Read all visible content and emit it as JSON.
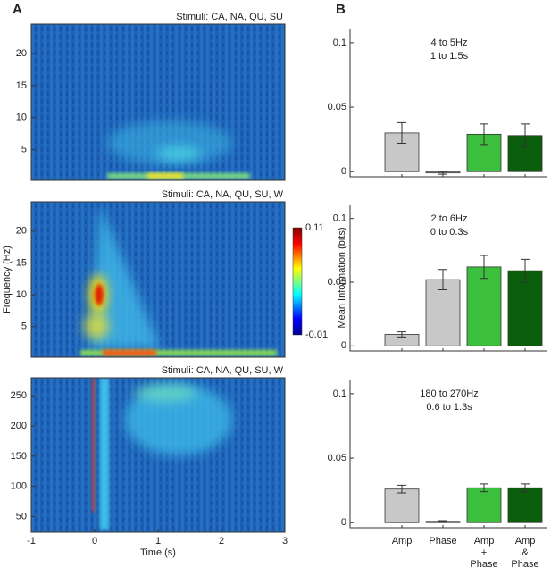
{
  "panel_labels": [
    "A",
    "B"
  ],
  "chart_data": [
    {
      "type": "heatmap",
      "title": "Stimuli: CA, NA, QU, SU",
      "xlim": [
        -1,
        3
      ],
      "ylim": [
        0.2,
        24.6
      ],
      "yticks": [
        5,
        10,
        15,
        20
      ]
    },
    {
      "type": "heatmap",
      "title": "Stimuli: CA, NA, QU, SU, W",
      "xlim": [
        -1,
        3
      ],
      "ylim": [
        0.2,
        24.6
      ],
      "yticks": [
        5,
        10,
        15,
        20
      ],
      "ylabel": "Frequency (Hz)",
      "colorbar_ticks": [
        0.11,
        -0.01
      ]
    },
    {
      "type": "heatmap",
      "title": "Stimuli: CA, NA, QU, SU, W",
      "xlim": [
        -1,
        3
      ],
      "ylim": [
        24,
        280
      ],
      "yticks": [
        50,
        100,
        150,
        200,
        250
      ],
      "xticks": [
        -1,
        0,
        1,
        2,
        3
      ],
      "xlabel": "Time (s)"
    },
    {
      "type": "bar",
      "annotation": [
        "4 to 5Hz",
        "1 to 1.5s"
      ],
      "categories": [
        null,
        null,
        null,
        null
      ],
      "values": [
        0.03,
        -0.001,
        0.029,
        0.028
      ],
      "errors": [
        0.008,
        0.001,
        0.008,
        0.009
      ],
      "colors": [
        "#c8c8c8",
        "#c8c8c8",
        "#3cbf3c",
        "#0b5e0b"
      ],
      "ylim": [
        -0.004,
        0.111
      ],
      "yticks": [
        0,
        0.05,
        0.1
      ]
    },
    {
      "type": "bar",
      "annotation": [
        "2 to 6Hz",
        "0 to 0.3s"
      ],
      "categories": [
        null,
        null,
        null,
        null
      ],
      "values": [
        0.009,
        0.052,
        0.062,
        0.059
      ],
      "errors": [
        0.002,
        0.008,
        0.009,
        0.009
      ],
      "colors": [
        "#c8c8c8",
        "#c8c8c8",
        "#3cbf3c",
        "#0b5e0b"
      ],
      "ylim": [
        -0.004,
        0.111
      ],
      "yticks": [
        0,
        0.05,
        0.1
      ],
      "ylabel": "Mean Information (bits)"
    },
    {
      "type": "bar",
      "annotation": [
        "180 to 270Hz",
        "0.6 to 1.3s"
      ],
      "categories": [
        [
          "Amp"
        ],
        [
          "Phase"
        ],
        [
          "Amp",
          "+",
          "Phase"
        ],
        [
          "Amp",
          "&",
          "Phase"
        ]
      ],
      "values": [
        0.026,
        0.001,
        0.027,
        0.027
      ],
      "errors": [
        0.003,
        0.0005,
        0.003,
        0.003
      ],
      "colors": [
        "#c8c8c8",
        "#c8c8c8",
        "#3cbf3c",
        "#0b5e0b"
      ],
      "ylim": [
        -0.004,
        0.111
      ],
      "yticks": [
        0,
        0.05,
        0.1
      ]
    }
  ]
}
